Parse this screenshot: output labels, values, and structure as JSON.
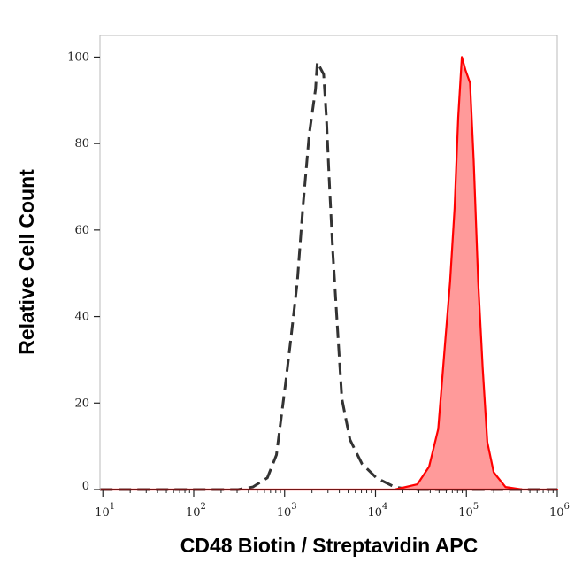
{
  "chart_data": {
    "type": "area",
    "title": "",
    "xlabel": "CD48 Biotin / Streptavidin APC",
    "ylabel": "Relative Cell Count",
    "xscale": "log",
    "xlim": [
      9.3,
      1000000
    ],
    "ylim": [
      0,
      105
    ],
    "grid": false,
    "x_ticks": [
      {
        "base": "10",
        "exp": "1"
      },
      {
        "base": "10",
        "exp": "2"
      },
      {
        "base": "10",
        "exp": "3"
      },
      {
        "base": "10",
        "exp": "4"
      },
      {
        "base": "10",
        "exp": "5"
      },
      {
        "base": "10",
        "exp": "6"
      }
    ],
    "y_ticks": [
      "0",
      "20",
      "40",
      "60",
      "80",
      "100"
    ],
    "series": [
      {
        "style": "dashed-outline",
        "color": "#333333",
        "log10_x": [
          0.97,
          2.49,
          2.65,
          2.81,
          2.91,
          3.01,
          3.07,
          3.14,
          3.2,
          3.27,
          3.34,
          3.36,
          3.43,
          3.46,
          3.49,
          3.53,
          3.58,
          3.63,
          3.72,
          3.85,
          4.01,
          4.21,
          4.4,
          6.0
        ],
        "y": [
          0,
          0,
          0.6,
          2.7,
          8,
          24.5,
          35,
          48,
          65,
          82,
          92.6,
          98.8,
          96,
          86,
          72,
          55,
          38,
          21,
          11.5,
          6,
          2.7,
          0.6,
          0,
          0
        ]
      },
      {
        "style": "filled",
        "color": "#ff0000",
        "fill": "#ff9a9a",
        "log10_x": [
          0.97,
          4.21,
          4.46,
          4.59,
          4.69,
          4.77,
          4.82,
          4.87,
          4.91,
          4.95,
          4.99,
          5.04,
          5.08,
          5.13,
          5.18,
          5.23,
          5.3,
          5.43,
          5.62,
          6.0
        ],
        "y": [
          0,
          0,
          1.2,
          5.3,
          14,
          35,
          48,
          65,
          86,
          100,
          97,
          94,
          76,
          48,
          28,
          11,
          4,
          0.6,
          0,
          0
        ]
      }
    ]
  }
}
